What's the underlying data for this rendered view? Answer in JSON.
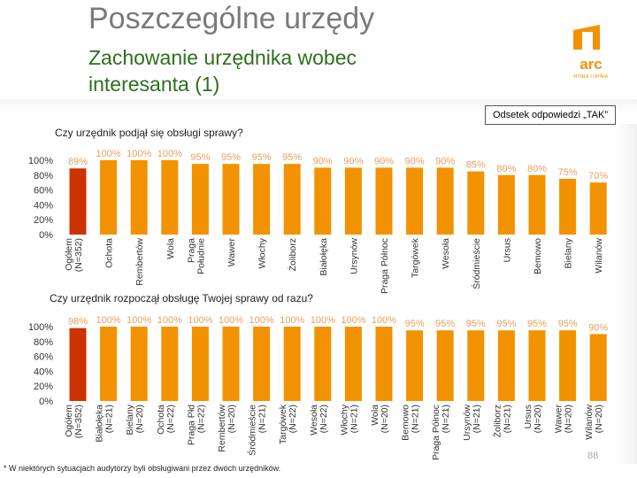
{
  "header": {
    "title": "Poszczególne urzędy",
    "subtitle_line1": "Zachowanie urzędnika wobec",
    "subtitle_line2": "interesanta (1)",
    "logo_text": "arc",
    "logo_subtext": "RYNEK I OPINIA",
    "odsetek_label": "Odsetek odpowiedzi „TAK”"
  },
  "colors": {
    "highlight": "#cc3300",
    "bar": "#f39200",
    "value_text": "#e8a060",
    "axis_text": "#333333"
  },
  "footnote": "* W niektórych sytuacjach audytorzy byli obsługiwani przez dwóch urzędników.",
  "page_number": "88",
  "chart_data": [
    {
      "type": "bar",
      "title": "Czy urzędnik podjął się obsługi sprawy?",
      "yticks": [
        "100%",
        "80%",
        "60%",
        "40%",
        "20%",
        "0%"
      ],
      "ylim": [
        0,
        100
      ],
      "categories": [
        "Ogółem (N=352)",
        "Ochota",
        "Rembertów",
        "Wola",
        "Praga Południe",
        "Wawer",
        "Włochy",
        "Żoliborz",
        "Białołęka",
        "Ursynów",
        "Praga Północ",
        "Targówek",
        "Wesoła",
        "Śródmieście",
        "Ursus",
        "Bemowo",
        "Bielany",
        "Wilanów"
      ],
      "values": [
        89,
        100,
        100,
        100,
        95,
        95,
        95,
        95,
        90,
        90,
        90,
        90,
        90,
        85,
        80,
        80,
        75,
        70
      ],
      "labels": [
        "89%",
        "100%",
        "100%",
        "100%",
        "95%",
        "95%",
        "95%",
        "95%",
        "90%",
        "90%",
        "90%",
        "90%",
        "90%",
        "85%",
        "80%",
        "80%",
        "75%",
        "70%"
      ]
    },
    {
      "type": "bar",
      "title": "Czy urzędnik rozpoczął obsługę Twojej sprawy od razu?",
      "yticks": [
        "100%",
        "80%",
        "60%",
        "40%",
        "20%",
        "0%"
      ],
      "ylim": [
        0,
        100
      ],
      "categories": [
        "Ogółem (N=352)",
        "Białołęka (N=21)",
        "Bielany (N=20)",
        "Ochota (N=22)",
        "Praga Płd (N=22)",
        "Rembertów (N=20)",
        "Śródmieście (N=21)",
        "Targówek (N=22)",
        "Wesoła (N=22)",
        "Włochy (N=21)",
        "Wola (N=20)",
        "Bemowo (N=21)",
        "Praga Północ (N=21)",
        "Ursynów (N=21)",
        "Żoliborz (N=21)",
        "Ursus (N=20)",
        "Wawer (N=20)",
        "Wilanów (N=20)"
      ],
      "values": [
        98,
        100,
        100,
        100,
        100,
        100,
        100,
        100,
        100,
        100,
        100,
        95,
        95,
        95,
        95,
        95,
        95,
        90
      ],
      "labels": [
        "98%",
        "100%",
        "100%",
        "100%",
        "100%",
        "100%",
        "100%",
        "100%",
        "100%",
        "100%",
        "100%",
        "95%",
        "95%",
        "95%",
        "95%",
        "95%",
        "95%",
        "90%"
      ]
    }
  ]
}
